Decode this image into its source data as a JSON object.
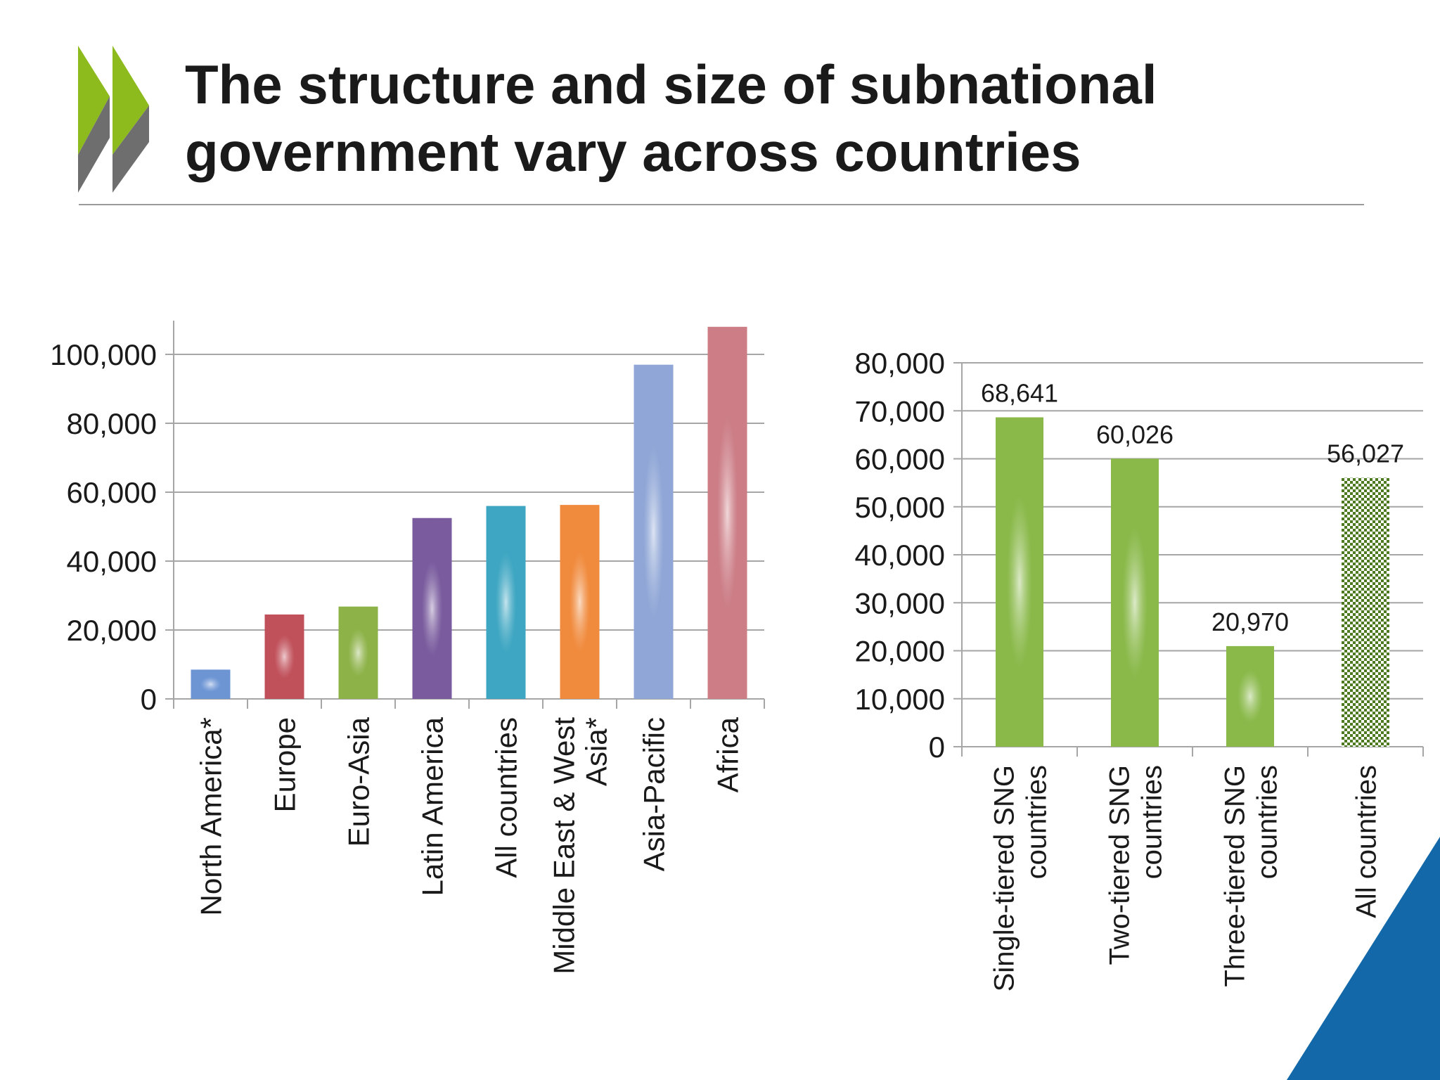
{
  "slide": {
    "title_lines": [
      "The structure and size of subnational",
      "government vary across countries"
    ],
    "colors": {
      "logo_green": "#8dbb1e",
      "logo_gray": "#6e6e6e",
      "corner_blue": "#1268a8",
      "text": "#1a1a1a",
      "gridline": "#a6a6a6"
    },
    "icons": [
      "oecd-chevron-logo-icon",
      "corner-triangle-icon"
    ]
  },
  "chart_data": [
    {
      "type": "bar",
      "title": "",
      "xlabel": "",
      "ylabel": "",
      "ylim": [
        0,
        100000
      ],
      "y_ticks": [
        "0",
        "20,000",
        "40,000",
        "60,000",
        "80,000",
        "100,000"
      ],
      "grid": true,
      "legend": "none",
      "categories": [
        "North America*",
        "Europe",
        "Euro-Asia",
        "Latin America",
        "All countries",
        "Middle East & West Asia*",
        "Asia-Pacific",
        "Africa"
      ],
      "values": [
        8500,
        24500,
        26800,
        52500,
        56000,
        56300,
        97000,
        108000
      ],
      "colors": [
        "#6d95d4",
        "#c0505a",
        "#8db248",
        "#7a5c9e",
        "#3ea6c2",
        "#f08a3c",
        "#8fa6d6",
        "#cc7d86"
      ]
    },
    {
      "type": "bar",
      "title": "",
      "xlabel": "",
      "ylabel": "",
      "ylim": [
        0,
        80000
      ],
      "y_ticks": [
        "0",
        "10,000",
        "20,000",
        "30,000",
        "40,000",
        "50,000",
        "60,000",
        "70,000",
        "80,000"
      ],
      "grid": true,
      "legend": "none",
      "categories": [
        "Single-tiered SNG countries",
        "Two-tiered SNG countries",
        "Three-tiered SNG countries",
        "All countries"
      ],
      "values": [
        68641,
        60026,
        20970,
        56027
      ],
      "data_labels": [
        "68,641",
        "60,026",
        "20,970",
        "56,027"
      ],
      "colors": [
        "#8ab94a",
        "#8ab94a",
        "#8ab94a",
        "#4d7a1e"
      ],
      "patterned_last_bar": true
    }
  ]
}
